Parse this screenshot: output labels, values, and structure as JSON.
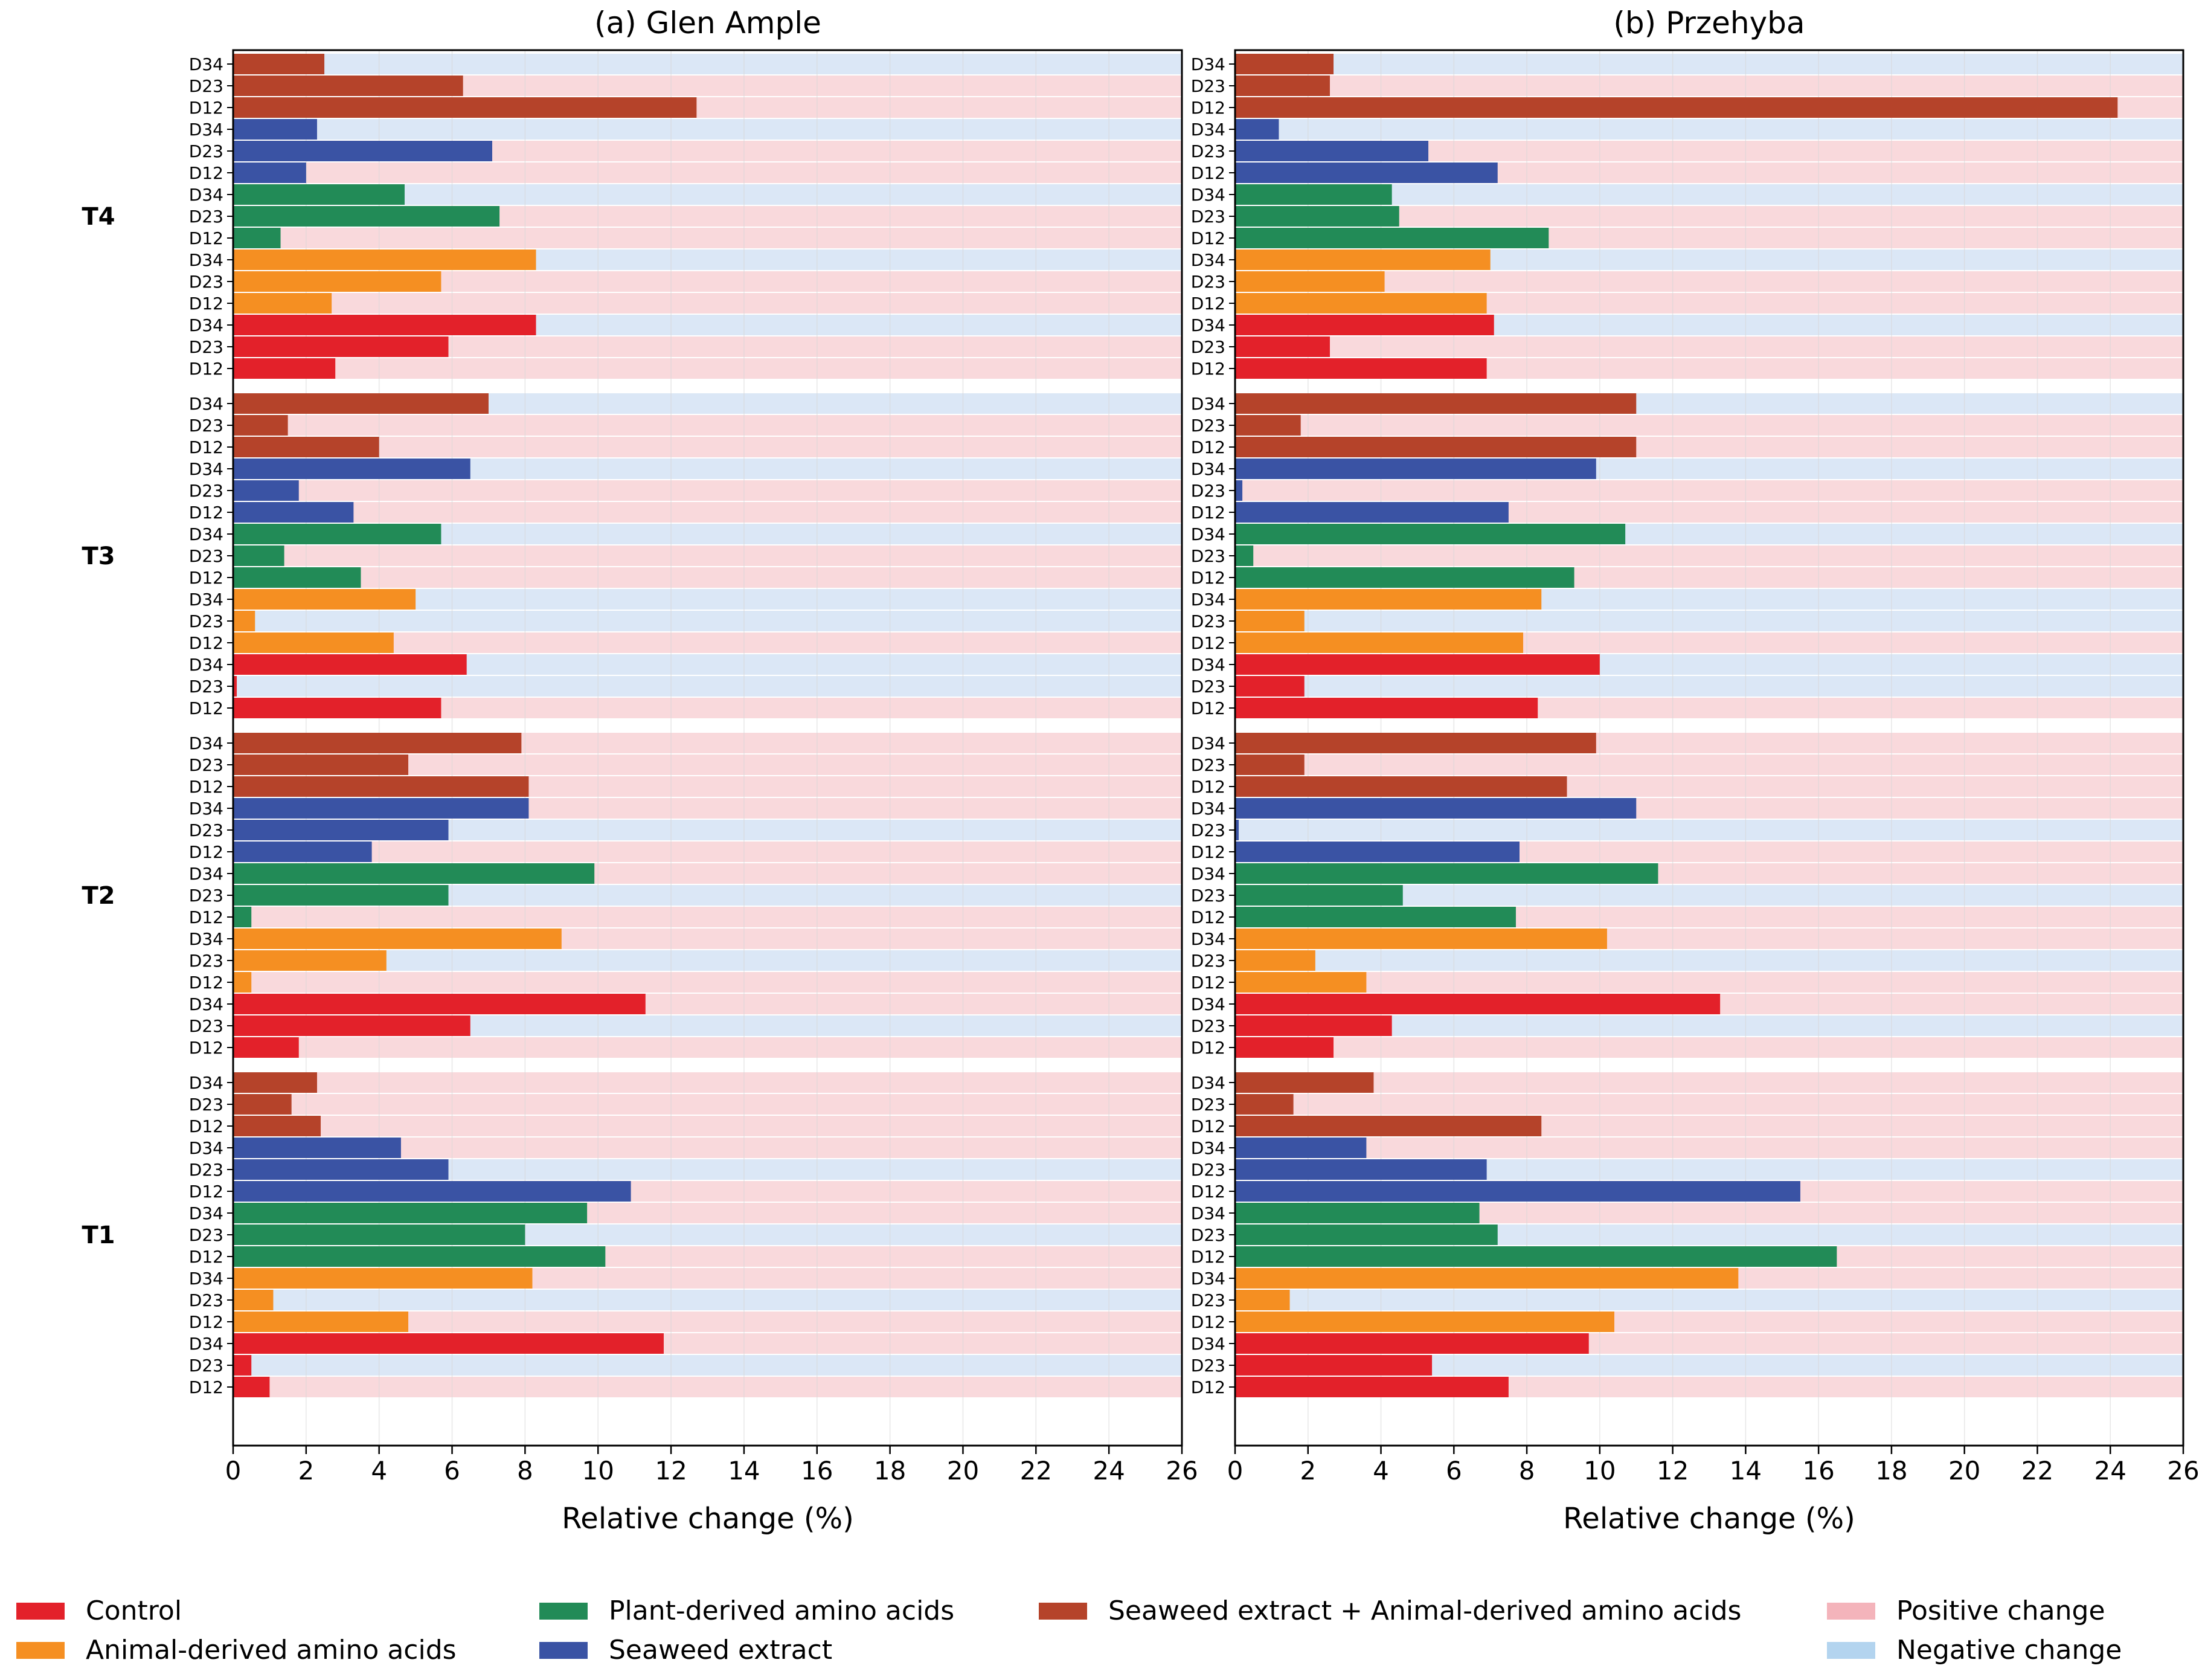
{
  "chart_data": {
    "type": "bar",
    "orientation": "horizontal",
    "xlabel": "Relative change (%)",
    "xlim": [
      0,
      26
    ],
    "xticks": [
      0,
      2,
      4,
      6,
      8,
      10,
      12,
      14,
      16,
      18,
      20,
      22,
      24,
      26
    ],
    "group_labels": [
      "T4",
      "T3",
      "T2",
      "T1"
    ],
    "row_labels": [
      "D34",
      "D23",
      "D12"
    ],
    "treatments": [
      {
        "name": "Seaweed extract + Animal-derived amino acids",
        "color": "#b5432a"
      },
      {
        "name": "Seaweed extract",
        "color": "#3a53a4"
      },
      {
        "name": "Plant-derived amino acids",
        "color": "#228b57"
      },
      {
        "name": "Animal-derived amino acids",
        "color": "#f58f22"
      },
      {
        "name": "Control",
        "color": "#e3212a"
      }
    ],
    "background": {
      "positive": {
        "name": "Positive change",
        "color": "#f9d9dc"
      },
      "negative": {
        "name": "Negative change",
        "color": "#dbe7f6"
      }
    },
    "legend": {
      "position": "bottom",
      "items": [
        {
          "label": "Control",
          "color": "#e3212a"
        },
        {
          "label": "Animal-derived amino acids",
          "color": "#f58f22"
        },
        {
          "label": "Plant-derived amino acids",
          "color": "#228b57"
        },
        {
          "label": "Seaweed extract",
          "color": "#3a53a4"
        },
        {
          "label": "Seaweed extract + Animal-derived amino acids",
          "color": "#b5432a"
        },
        {
          "label": "Positive change",
          "color": "#f4b4bb"
        },
        {
          "label": "Negative change",
          "color": "#b3d4ef"
        }
      ]
    },
    "panels": [
      {
        "title": "(a) Glen Ample",
        "groups": [
          {
            "label": "T4",
            "treatments": [
              {
                "name": "Seaweed extract + Animal-derived amino acids",
                "values": [
                  2.5,
                  6.3,
                  12.7
                ],
                "signs": [
                  "neg",
                  "pos",
                  "pos"
                ]
              },
              {
                "name": "Seaweed extract",
                "values": [
                  2.3,
                  7.1,
                  2.0
                ],
                "signs": [
                  "neg",
                  "pos",
                  "pos"
                ]
              },
              {
                "name": "Plant-derived amino acids",
                "values": [
                  4.7,
                  7.3,
                  1.3
                ],
                "signs": [
                  "neg",
                  "pos",
                  "pos"
                ]
              },
              {
                "name": "Animal-derived amino acids",
                "values": [
                  8.3,
                  5.7,
                  2.7
                ],
                "signs": [
                  "neg",
                  "pos",
                  "pos"
                ]
              },
              {
                "name": "Control",
                "values": [
                  8.3,
                  5.9,
                  2.8
                ],
                "signs": [
                  "neg",
                  "pos",
                  "pos"
                ]
              }
            ]
          },
          {
            "label": "T3",
            "treatments": [
              {
                "name": "Seaweed extract + Animal-derived amino acids",
                "values": [
                  7.0,
                  1.5,
                  4.0
                ],
                "signs": [
                  "neg",
                  "pos",
                  "pos"
                ]
              },
              {
                "name": "Seaweed extract",
                "values": [
                  6.5,
                  1.8,
                  3.3
                ],
                "signs": [
                  "neg",
                  "pos",
                  "pos"
                ]
              },
              {
                "name": "Plant-derived amino acids",
                "values": [
                  5.7,
                  1.4,
                  3.5
                ],
                "signs": [
                  "neg",
                  "pos",
                  "pos"
                ]
              },
              {
                "name": "Animal-derived amino acids",
                "values": [
                  5.0,
                  0.6,
                  4.4
                ],
                "signs": [
                  "neg",
                  "neg",
                  "pos"
                ]
              },
              {
                "name": "Control",
                "values": [
                  6.4,
                  0.1,
                  5.7
                ],
                "signs": [
                  "neg",
                  "neg",
                  "pos"
                ]
              }
            ]
          },
          {
            "label": "T2",
            "treatments": [
              {
                "name": "Seaweed extract + Animal-derived amino acids",
                "values": [
                  7.9,
                  4.8,
                  8.1
                ],
                "signs": [
                  "pos",
                  "pos",
                  "pos"
                ]
              },
              {
                "name": "Seaweed extract",
                "values": [
                  8.1,
                  5.9,
                  3.8
                ],
                "signs": [
                  "pos",
                  "neg",
                  "pos"
                ]
              },
              {
                "name": "Plant-derived amino acids",
                "values": [
                  9.9,
                  5.9,
                  0.5
                ],
                "signs": [
                  "pos",
                  "neg",
                  "pos"
                ]
              },
              {
                "name": "Animal-derived amino acids",
                "values": [
                  9.0,
                  4.2,
                  0.5
                ],
                "signs": [
                  "pos",
                  "neg",
                  "pos"
                ]
              },
              {
                "name": "Control",
                "values": [
                  11.3,
                  6.5,
                  1.8
                ],
                "signs": [
                  "pos",
                  "neg",
                  "pos"
                ]
              }
            ]
          },
          {
            "label": "T1",
            "treatments": [
              {
                "name": "Seaweed extract + Animal-derived amino acids",
                "values": [
                  2.3,
                  1.6,
                  2.4
                ],
                "signs": [
                  "pos",
                  "pos",
                  "pos"
                ]
              },
              {
                "name": "Seaweed extract",
                "values": [
                  4.6,
                  5.9,
                  10.9
                ],
                "signs": [
                  "pos",
                  "neg",
                  "pos"
                ]
              },
              {
                "name": "Plant-derived amino acids",
                "values": [
                  9.7,
                  8.0,
                  10.2
                ],
                "signs": [
                  "pos",
                  "neg",
                  "pos"
                ]
              },
              {
                "name": "Animal-derived amino acids",
                "values": [
                  8.2,
                  1.1,
                  4.8
                ],
                "signs": [
                  "pos",
                  "neg",
                  "pos"
                ]
              },
              {
                "name": "Control",
                "values": [
                  11.8,
                  0.5,
                  1.0
                ],
                "signs": [
                  "pos",
                  "neg",
                  "pos"
                ]
              }
            ]
          }
        ]
      },
      {
        "title": "(b) Przehyba",
        "groups": [
          {
            "label": "T4",
            "treatments": [
              {
                "name": "Seaweed extract + Animal-derived amino acids",
                "values": [
                  2.7,
                  2.6,
                  24.2
                ],
                "signs": [
                  "neg",
                  "pos",
                  "pos"
                ]
              },
              {
                "name": "Seaweed extract",
                "values": [
                  1.2,
                  5.3,
                  7.2
                ],
                "signs": [
                  "neg",
                  "pos",
                  "pos"
                ]
              },
              {
                "name": "Plant-derived amino acids",
                "values": [
                  4.3,
                  4.5,
                  8.6
                ],
                "signs": [
                  "neg",
                  "pos",
                  "pos"
                ]
              },
              {
                "name": "Animal-derived amino acids",
                "values": [
                  7.0,
                  4.1,
                  6.9
                ],
                "signs": [
                  "neg",
                  "pos",
                  "pos"
                ]
              },
              {
                "name": "Control",
                "values": [
                  7.1,
                  2.6,
                  6.9
                ],
                "signs": [
                  "neg",
                  "pos",
                  "pos"
                ]
              }
            ]
          },
          {
            "label": "T3",
            "treatments": [
              {
                "name": "Seaweed extract + Animal-derived amino acids",
                "values": [
                  11.0,
                  1.8,
                  11.0
                ],
                "signs": [
                  "neg",
                  "pos",
                  "pos"
                ]
              },
              {
                "name": "Seaweed extract",
                "values": [
                  9.9,
                  0.2,
                  7.5
                ],
                "signs": [
                  "neg",
                  "pos",
                  "pos"
                ]
              },
              {
                "name": "Plant-derived amino acids",
                "values": [
                  10.7,
                  0.5,
                  9.3
                ],
                "signs": [
                  "neg",
                  "pos",
                  "pos"
                ]
              },
              {
                "name": "Animal-derived amino acids",
                "values": [
                  8.4,
                  1.9,
                  7.9
                ],
                "signs": [
                  "neg",
                  "neg",
                  "pos"
                ]
              },
              {
                "name": "Control",
                "values": [
                  10.0,
                  1.9,
                  8.3
                ],
                "signs": [
                  "neg",
                  "neg",
                  "pos"
                ]
              }
            ]
          },
          {
            "label": "T2",
            "treatments": [
              {
                "name": "Seaweed extract + Animal-derived amino acids",
                "values": [
                  9.9,
                  1.9,
                  9.1
                ],
                "signs": [
                  "pos",
                  "pos",
                  "pos"
                ]
              },
              {
                "name": "Seaweed extract",
                "values": [
                  11.0,
                  0.1,
                  7.8
                ],
                "signs": [
                  "pos",
                  "neg",
                  "pos"
                ]
              },
              {
                "name": "Plant-derived amino acids",
                "values": [
                  11.6,
                  4.6,
                  7.7
                ],
                "signs": [
                  "pos",
                  "neg",
                  "pos"
                ]
              },
              {
                "name": "Animal-derived amino acids",
                "values": [
                  10.2,
                  2.2,
                  3.6
                ],
                "signs": [
                  "pos",
                  "neg",
                  "pos"
                ]
              },
              {
                "name": "Control",
                "values": [
                  13.3,
                  4.3,
                  2.7
                ],
                "signs": [
                  "pos",
                  "neg",
                  "pos"
                ]
              }
            ]
          },
          {
            "label": "T1",
            "treatments": [
              {
                "name": "Seaweed extract + Animal-derived amino acids",
                "values": [
                  3.8,
                  1.6,
                  8.4
                ],
                "signs": [
                  "pos",
                  "pos",
                  "pos"
                ]
              },
              {
                "name": "Seaweed extract",
                "values": [
                  3.6,
                  6.9,
                  15.5
                ],
                "signs": [
                  "pos",
                  "neg",
                  "pos"
                ]
              },
              {
                "name": "Plant-derived amino acids",
                "values": [
                  6.7,
                  7.2,
                  16.5
                ],
                "signs": [
                  "pos",
                  "neg",
                  "pos"
                ]
              },
              {
                "name": "Animal-derived amino acids",
                "values": [
                  13.8,
                  1.5,
                  10.4
                ],
                "signs": [
                  "pos",
                  "neg",
                  "pos"
                ]
              },
              {
                "name": "Control",
                "values": [
                  9.7,
                  5.4,
                  7.5
                ],
                "signs": [
                  "pos",
                  "neg",
                  "pos"
                ]
              }
            ]
          }
        ]
      }
    ]
  }
}
